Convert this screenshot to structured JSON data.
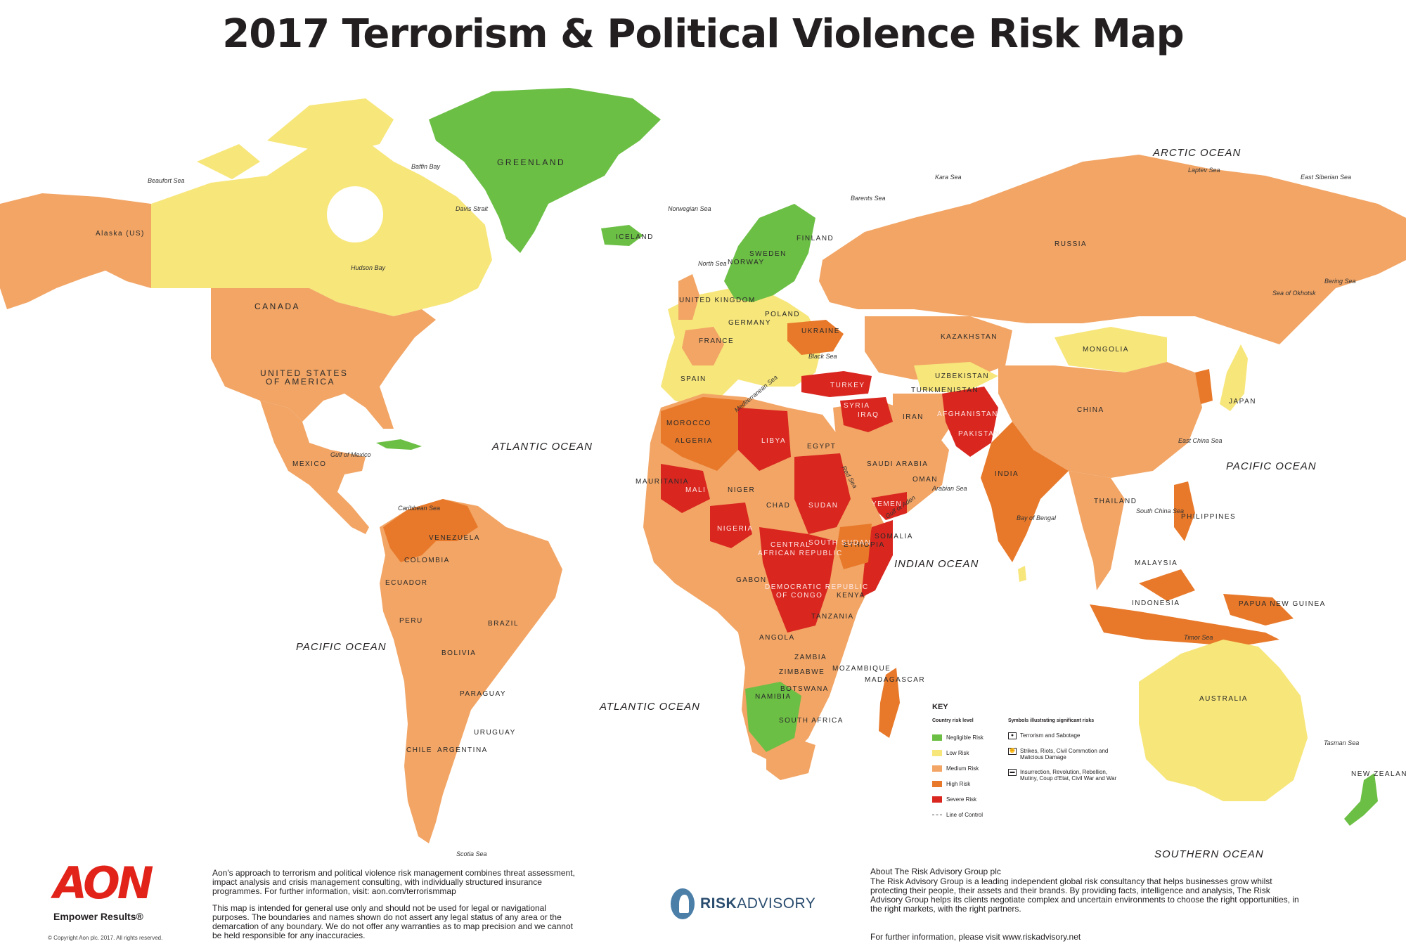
{
  "title": "2017 Terrorism & Political Violence Risk Map",
  "colors": {
    "negligible": "#6cbf45",
    "low": "#f7e67a",
    "medium": "#f2a565",
    "high": "#e8792a",
    "severe": "#d9261f",
    "ocean_bg": "#ffffff"
  },
  "oceans": {
    "arctic": "ARCTIC OCEAN",
    "atlantic_north": "ATLANTIC OCEAN",
    "atlantic_south": "ATLANTIC OCEAN",
    "pacific_west": "PACIFIC OCEAN",
    "pacific_east": "PACIFIC OCEAN",
    "indian": "INDIAN OCEAN",
    "southern": "SOUTHERN OCEAN"
  },
  "seas": {
    "beaufort": "Beaufort Sea",
    "baffin": "Baffin Bay",
    "davis": "Davis Strait",
    "hudson": "Hudson Bay",
    "norwegian": "Norwegian Sea",
    "barents": "Barents Sea",
    "kara": "Kara Sea",
    "laptev": "Laptev Sea",
    "east_siberian": "East Siberian Sea",
    "bering": "Bering Sea",
    "okhotsk": "Sea of Okhotsk",
    "north_sea": "North Sea",
    "mediterranean": "Mediterranean Sea",
    "black": "Black Sea",
    "red": "Red Sea",
    "arabian": "Arabian Sea",
    "aden": "Gulf of Aden",
    "bengal": "Bay of Bengal",
    "south_china": "South China Sea",
    "east_china": "East China Sea",
    "gulf_mexico": "Gulf of Mexico",
    "caribbean": "Caribbean Sea",
    "timor": "Timor Sea",
    "tasman": "Tasman Sea",
    "scotia": "Scotia Sea"
  },
  "countries": {
    "greenland": "GREENLAND",
    "canada": "CANADA",
    "usa_1": "UNITED STATES",
    "usa_2": "OF AMERICA",
    "alaska": "Alaska (US)",
    "mexico": "MEXICO",
    "russia": "RUSSIA",
    "kazakhstan": "KAZAKHSTAN",
    "mongolia": "MONGOLIA",
    "china": "CHINA",
    "india": "INDIA",
    "iran": "IRAN",
    "turkey": "TURKEY",
    "afghanistan": "AFGHANISTAN",
    "pakistan": "PAKISTAN",
    "saudi_arabia": "SAUDI ARABIA",
    "yemen": "YEMEN",
    "algeria": "ALGERIA",
    "libya": "LIBYA",
    "egypt": "EGYPT",
    "mali": "MALI",
    "niger": "NIGER",
    "chad": "CHAD",
    "sudan": "SUDAN",
    "nigeria": "NIGERIA",
    "ethiopia": "ETHIOPIA",
    "drc_1": "DEMOCRATIC REPUBLIC",
    "drc_2": "OF CONGO",
    "car_1": "CENTRAL",
    "car_2": "AFRICAN REPUBLIC",
    "south_sudan": "SOUTH SUDAN",
    "angola": "ANGOLA",
    "namibia": "NAMIBIA",
    "botswana": "BOTSWANA",
    "south_africa": "SOUTH AFRICA",
    "madagascar": "MADAGASCAR",
    "brazil": "BRAZIL",
    "argentina": "ARGENTINA",
    "peru": "PERU",
    "bolivia": "BOLIVIA",
    "colombia": "COLOMBIA",
    "venezuela": "VENEZUELA",
    "chile": "CHILE",
    "australia": "AUSTRALIA",
    "new_zealand": "NEW ZEALAND",
    "indonesia": "INDONESIA",
    "japan": "JAPAN",
    "iceland": "ICELAND",
    "sweden": "SWEDEN",
    "finland": "FINLAND",
    "norway": "NORWAY",
    "france": "FRANCE",
    "spain": "SPAIN",
    "poland": "POLAND",
    "ukraine": "UKRAINE",
    "germany": "GERMANY",
    "uk": "UNITED KINGDOM",
    "thailand": "THAILAND",
    "philippines": "PHILIPPINES",
    "papua": "PAPUA NEW GUINEA",
    "somalia": "SOMALIA",
    "kenya": "KENYA",
    "tanzania": "TANZANIA",
    "zambia": "ZAMBIA",
    "mozambique": "MOZAMBIQUE",
    "iraq": "IRAQ",
    "syria": "SYRIA",
    "oman": "OMAN",
    "uzbekistan": "UZBEKISTAN",
    "turkmenistan": "TURKMENISTAN",
    "malaysia": "MALAYSIA",
    "ecuador": "ECUADOR",
    "paraguay": "PARAGUAY",
    "uruguay": "URUGUAY",
    "mauritania": "MAURITANIA",
    "morocco": "MOROCCO",
    "gabon": "GABON",
    "zimbabwe": "ZIMBABWE"
  },
  "legend": {
    "title": "KEY",
    "risk_header": "Country risk level",
    "symbol_header": "Symbols illustrating significant risks",
    "levels": [
      "Negligible Risk",
      "Low Risk",
      "Medium Risk",
      "High Risk",
      "Severe Risk"
    ],
    "line_of_control": "Line of Control",
    "symbols": [
      "Terrorism and Sabotage",
      "Strikes, Riots, Civil Commotion and Malicious Damage",
      "Insurrection, Revolution, Rebellion, Mutiny, Coup d'Etat, Civil War and War"
    ]
  },
  "footer": {
    "aon_logo": "AON",
    "aon_tagline": "Empower Results®",
    "copyright": "© Copyright Aon plc. 2017. All rights reserved.",
    "aon_text": "Aon's approach to terrorism and political violence risk management combines threat assessment, impact analysis and crisis management consulting, with individually structured insurance programmes. For further information, visit: aon.com/terrorismmap",
    "disclaimer": "This map is intended for general use only and should not be used for legal or navigational purposes. The boundaries and names shown do not assert any legal status of any area or the demarcation of any boundary. We do not offer any warranties as to map precision and we cannot be held responsible for any inaccuracies.",
    "risk_logo_bold": "RISK",
    "risk_logo_rest": "ADVISORY",
    "about_title": "About The Risk Advisory Group plc",
    "about_text": "The Risk Advisory Group is a leading independent global risk consultancy that helps businesses grow whilst protecting their people, their assets and their brands. By providing facts, intelligence and analysis, The Risk Advisory Group helps its clients negotiate complex and uncertain environments to choose the right opportunities, in the right markets, with the right partners.",
    "about_url": "For further information, please visit www.riskadvisory.net"
  }
}
